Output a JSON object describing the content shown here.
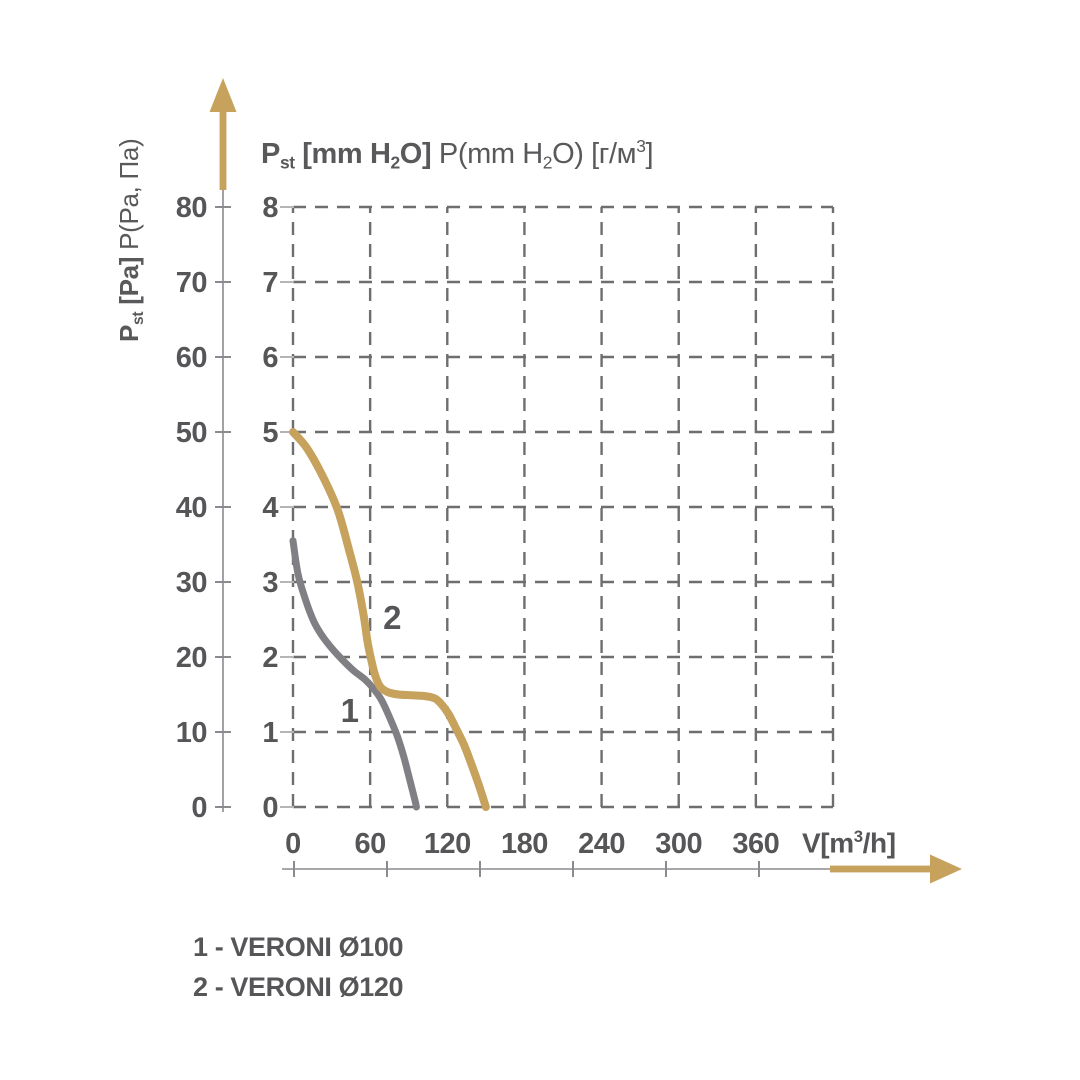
{
  "title": {
    "p": "P",
    "p_sub": "st",
    "bold_a": " [mm H",
    "bold_sub": "2",
    "bold_b": "O]",
    "norm_a": " P(mm H",
    "norm_sub": "2",
    "norm_b": "O) [г/м",
    "norm_sup": "3",
    "norm_c": "]"
  },
  "yaxis_title": {
    "p": "P",
    "p_sub": "st",
    "bold": " [Pa]",
    "norm": " P(Pa, Па)"
  },
  "x_axis_label": {
    "pre": "V[m",
    "sup": "3",
    "post": "/h]"
  },
  "legend": {
    "items": [
      {
        "label": "1 - VERONI Ø100"
      },
      {
        "label": "2 - VERONI Ø120"
      }
    ]
  },
  "colors": {
    "accent_tan": "#c6a25c",
    "curve_gray": "#808084",
    "grid": "#6e6e71",
    "text": "#565659",
    "axis_line": "#8b8b8f",
    "edge_tick": "#b5b5b8",
    "background": "#ffffff"
  },
  "chart_data": {
    "type": "line",
    "title": "Pst [mm H2O] P(mm H2O) [г/м3]",
    "xlabel": "V[m3/h]",
    "ylabel_outer": "Pst [Pa] P(Pa, Па)",
    "ylabel_inner": "Pst [mm H2O]",
    "grid": "dashed",
    "x_ticks": [
      0,
      60,
      120,
      180,
      240,
      300,
      360
    ],
    "x_grid_step": 60,
    "x_max": 420,
    "y_ticks_mm": [
      0,
      1,
      2,
      3,
      4,
      5,
      6,
      7,
      8
    ],
    "y_ticks_pa": [
      0,
      10,
      20,
      30,
      40,
      50,
      60,
      70,
      80
    ],
    "y_max_mm": 8,
    "legend_position": "bottom-left",
    "series": [
      {
        "name": "VERONI Ø100",
        "curve_label": "1",
        "color": "#808084",
        "stroke_width": 7,
        "label_at": [
          44,
          1.28
        ],
        "points": [
          [
            0,
            3.55
          ],
          [
            4,
            3.1
          ],
          [
            10,
            2.75
          ],
          [
            16,
            2.48
          ],
          [
            22,
            2.3
          ],
          [
            30,
            2.12
          ],
          [
            38,
            1.97
          ],
          [
            47,
            1.82
          ],
          [
            56,
            1.7
          ],
          [
            63,
            1.57
          ],
          [
            69,
            1.42
          ],
          [
            75,
            1.2
          ],
          [
            81,
            0.95
          ],
          [
            86,
            0.68
          ],
          [
            91,
            0.35
          ],
          [
            95,
            0.08
          ],
          [
            96,
            0
          ]
        ]
      },
      {
        "name": "VERONI Ø120",
        "curve_label": "2",
        "color": "#c6a25c",
        "stroke_width": 8,
        "label_at": [
          77,
          2.52
        ],
        "points": [
          [
            0,
            5.0
          ],
          [
            11,
            4.78
          ],
          [
            24,
            4.38
          ],
          [
            35,
            3.95
          ],
          [
            44,
            3.4
          ],
          [
            50,
            3.0
          ],
          [
            55,
            2.55
          ],
          [
            58,
            2.2
          ],
          [
            61,
            1.95
          ],
          [
            64,
            1.75
          ],
          [
            68,
            1.6
          ],
          [
            74,
            1.53
          ],
          [
            82,
            1.5
          ],
          [
            92,
            1.49
          ],
          [
            102,
            1.48
          ],
          [
            110,
            1.45
          ],
          [
            115,
            1.38
          ],
          [
            121,
            1.24
          ],
          [
            127,
            1.04
          ],
          [
            133,
            0.83
          ],
          [
            139,
            0.56
          ],
          [
            145,
            0.27
          ],
          [
            150,
            0
          ]
        ]
      }
    ]
  }
}
